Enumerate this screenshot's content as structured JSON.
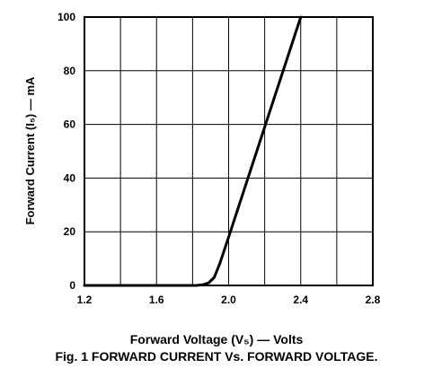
{
  "chart_data": {
    "type": "line",
    "title": "",
    "xlabel": "Forward Voltage (V₅) — Volts",
    "ylabel": "Forward Current (I₅) — mA",
    "caption": "Fig. 1 FORWARD CURRENT Vs. FORWARD VOLTAGE.",
    "xlim": [
      1.2,
      2.8
    ],
    "ylim": [
      0,
      100
    ],
    "x_ticks": [
      "1.2",
      "1.6",
      "2.0",
      "2.4",
      "2.8"
    ],
    "y_ticks": [
      "0",
      "20",
      "40",
      "60",
      "80",
      "100"
    ],
    "grid": true,
    "series": [
      {
        "color": "#000000",
        "x": [
          1.2,
          1.4,
          1.6,
          1.75,
          1.82,
          1.86,
          1.89,
          1.92,
          1.95,
          2.0,
          2.2,
          2.4
        ],
        "y": [
          0,
          0,
          0,
          0,
          0,
          0.3,
          1,
          3,
          8,
          18,
          59,
          100
        ]
      }
    ]
  }
}
